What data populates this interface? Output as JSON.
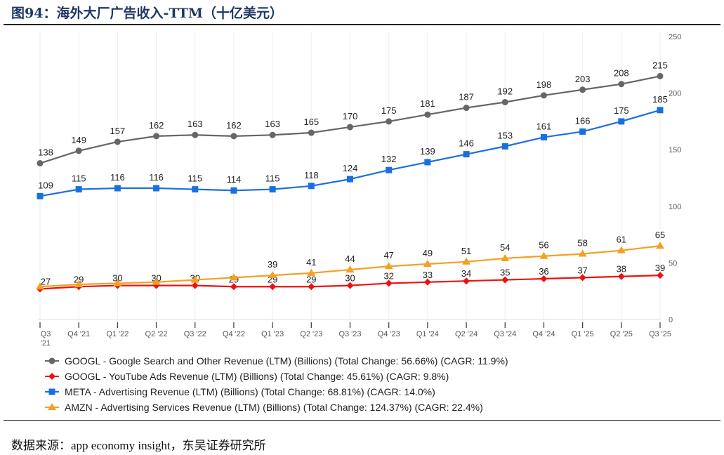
{
  "title": "图94：海外大厂广告收入-TTM（十亿美元）",
  "source": "数据来源：app economy insight，东吴证券研究所",
  "chart_data": {
    "type": "line",
    "categories": [
      "Q3 '21",
      "Q4 '21",
      "Q1 '22",
      "Q2 '22",
      "Q3 '22",
      "Q4 '22",
      "Q1 '23",
      "Q2 '23",
      "Q3 '23",
      "Q4 '23",
      "Q1 '24",
      "Q2 '24",
      "Q3 '24",
      "Q4 '24",
      "Q1 '25",
      "Q2 '25",
      "Q3 '25"
    ],
    "ylim": [
      0,
      250
    ],
    "yticks": [
      0,
      50,
      100,
      150,
      200,
      250
    ],
    "y_axis_position": "right",
    "series": [
      {
        "name": "GOOGL - Google Search and Other Revenue (LTM) (Billions) (Total Change: 56.66%) (CAGR: 11.9%)",
        "color": "#666666",
        "marker": "circle",
        "values": [
          138,
          149,
          157,
          162,
          163,
          162,
          163,
          165,
          170,
          175,
          181,
          187,
          192,
          198,
          203,
          208,
          215
        ],
        "label_from": 0
      },
      {
        "name": "GOOGL - YouTube Ads Revenue (LTM) (Billions) (Total Change: 45.61%) (CAGR: 9.8%)",
        "color": "#ee1111",
        "marker": "diamond",
        "values": [
          27,
          29,
          30,
          30,
          30,
          29,
          29,
          29,
          30,
          32,
          33,
          34,
          35,
          36,
          37,
          38,
          39
        ],
        "label_from": 0
      },
      {
        "name": "META - Advertising Revenue (LTM) (Billions) (Total Change: 68.81%) (CAGR: 14.0%)",
        "color": "#1a6fe0",
        "marker": "square",
        "values": [
          109,
          115,
          116,
          116,
          115,
          114,
          115,
          118,
          124,
          132,
          139,
          146,
          153,
          161,
          166,
          175,
          185
        ],
        "label_from": 0
      },
      {
        "name": "AMZN - Advertising Services Revenue (LTM) (Billions) (Total Change: 124.37%) (CAGR: 22.4%)",
        "color": "#f5a020",
        "marker": "triangle",
        "values": [
          29,
          31,
          32,
          33,
          35,
          37,
          39,
          41,
          44,
          47,
          49,
          51,
          54,
          56,
          58,
          61,
          65
        ],
        "label_from": 6
      }
    ]
  }
}
